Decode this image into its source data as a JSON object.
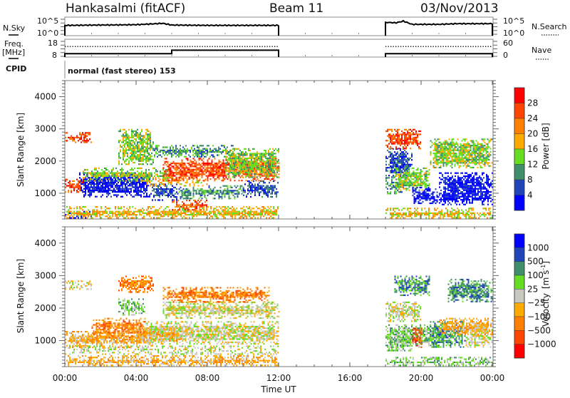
{
  "header": {
    "station": "Hankasalmi (fitACF)",
    "beam": "Beam 11",
    "date": "03/Nov/2013"
  },
  "colors": {
    "frame": "#7a7a7a",
    "trace": "#000000"
  },
  "chart_data": [
    {
      "type": "line",
      "name": "noise-panel",
      "left_label": "N.Sky",
      "right_label": "N.Search",
      "left_ticks": [
        "10^5",
        "10^0"
      ],
      "right_ticks": [
        "10^5",
        "10^0"
      ],
      "x_range_hours": [
        0,
        24
      ],
      "data_gap_hours": [
        12,
        18
      ],
      "series": [
        {
          "name": "N.Sky",
          "style": "solid",
          "level_fraction": [
            [
              0,
              0.6
            ],
            [
              2,
              0.62
            ],
            [
              4,
              0.64
            ],
            [
              5.5,
              0.72
            ],
            [
              6,
              0.62
            ],
            [
              8,
              0.6
            ],
            [
              10,
              0.6
            ],
            [
              12,
              0.6
            ],
            [
              18,
              0.78
            ],
            [
              18.6,
              0.75
            ],
            [
              19,
              0.85
            ],
            [
              19.5,
              0.66
            ],
            [
              21,
              0.66
            ],
            [
              22,
              0.7
            ],
            [
              24,
              0.7
            ]
          ]
        }
      ]
    },
    {
      "type": "line",
      "name": "freq-panel",
      "left_label": "Freq.",
      "left_unit": "[MHz]",
      "right_label": "Nave",
      "left_ticks": [
        "18",
        "8"
      ],
      "right_ticks": [
        "60",
        "0"
      ],
      "x_range_hours": [
        0,
        24
      ],
      "data_gap_hours": [
        12,
        18
      ],
      "series": [
        {
          "name": "Freq",
          "style": "solid",
          "values_mhz": [
            [
              0,
              10
            ],
            [
              6,
              10
            ],
            [
              6,
              12
            ],
            [
              12,
              12
            ],
            [
              18,
              10
            ],
            [
              24,
              10
            ]
          ]
        },
        {
          "name": "Nave",
          "style": "dotted",
          "values": [
            [
              0,
              37
            ],
            [
              12,
              37
            ],
            [
              18,
              37
            ],
            [
              24,
              37
            ]
          ]
        }
      ]
    },
    {
      "type": "table",
      "name": "cpid-row",
      "label": "CPID",
      "text": "normal (fast stereo) 153"
    },
    {
      "type": "heatmap",
      "name": "power-panel",
      "ylabel": "Slant Range [km]",
      "y_ticks": [
        "4000",
        "3000",
        "2000",
        "1000"
      ],
      "y_tick_values": [
        4000,
        3000,
        2000,
        1000
      ],
      "ylim": [
        200,
        4500
      ],
      "x_range_hours": [
        0,
        24
      ],
      "data_gap_hours": [
        12,
        18
      ],
      "colorbar": {
        "label": "Power [dB]",
        "ticks": [
          "28",
          "24",
          "20",
          "16",
          "12",
          "8",
          "4"
        ],
        "colors": [
          "#ff0000",
          "#ff4500",
          "#ff7f00",
          "#ffaa00",
          "#66dd22",
          "#3f8f6a",
          "#2244bb",
          "#0000ff"
        ]
      },
      "bands": [
        {
          "t0": 0.0,
          "t1": 1.0,
          "r0": 1050,
          "r1": 1450,
          "level": 1
        },
        {
          "t0": 0.0,
          "t1": 1.5,
          "r0": 2600,
          "r1": 2900,
          "level": 1
        },
        {
          "t0": 0.8,
          "t1": 4.8,
          "r0": 900,
          "r1": 1650,
          "level": 7
        },
        {
          "t0": 4.8,
          "t1": 6.3,
          "r0": 800,
          "r1": 1300,
          "level": 6
        },
        {
          "t0": 6.3,
          "t1": 10.0,
          "r0": 850,
          "r1": 1250,
          "level": 5
        },
        {
          "t0": 10.0,
          "t1": 12.0,
          "r0": 900,
          "r1": 1400,
          "level": 6
        },
        {
          "t0": 1.0,
          "t1": 6.0,
          "r0": 1400,
          "r1": 1800,
          "level": 4
        },
        {
          "t0": 3.0,
          "t1": 5.0,
          "r0": 1900,
          "r1": 3000,
          "level": 4
        },
        {
          "t0": 4.5,
          "t1": 8.0,
          "r0": 1250,
          "r1": 1500,
          "level": 3
        },
        {
          "t0": 5.5,
          "t1": 12.0,
          "r0": 1400,
          "r1": 2100,
          "level": 1
        },
        {
          "t0": 5.0,
          "t1": 9.5,
          "r0": 2150,
          "r1": 2500,
          "level": 5
        },
        {
          "t0": 9.0,
          "t1": 12.0,
          "r0": 1500,
          "r1": 2400,
          "level": 4
        },
        {
          "t0": 6.0,
          "t1": 8.0,
          "r0": 450,
          "r1": 800,
          "level": 1
        },
        {
          "t0": 0.0,
          "t1": 1.5,
          "r0": 250,
          "r1": 450,
          "level": 7
        },
        {
          "t0": 0.0,
          "t1": 12.0,
          "r0": 220,
          "r1": 600,
          "level": 3
        },
        {
          "t0": 18.0,
          "t1": 19.5,
          "r0": 1500,
          "r1": 2400,
          "level": 6
        },
        {
          "t0": 18.0,
          "t1": 19.0,
          "r0": 1000,
          "r1": 1500,
          "level": 5
        },
        {
          "t0": 18.5,
          "t1": 20.5,
          "r0": 1100,
          "r1": 1800,
          "level": 4
        },
        {
          "t0": 19.5,
          "t1": 21.0,
          "r0": 700,
          "r1": 1200,
          "level": 7
        },
        {
          "t0": 21.0,
          "t1": 24.0,
          "r0": 650,
          "r1": 1650,
          "level": 7
        },
        {
          "t0": 18.0,
          "t1": 20.0,
          "r0": 2400,
          "r1": 3000,
          "level": 1
        },
        {
          "t0": 20.5,
          "t1": 24.0,
          "r0": 1800,
          "r1": 2700,
          "level": 4
        },
        {
          "t0": 18.0,
          "t1": 24.0,
          "r0": 220,
          "r1": 550,
          "level": 3
        }
      ]
    },
    {
      "type": "heatmap",
      "name": "velocity-panel",
      "ylabel": "Slant Range [km]",
      "y_ticks": [
        "4000",
        "3000",
        "2000",
        "1000"
      ],
      "y_tick_values": [
        4000,
        3000,
        2000,
        1000
      ],
      "ylim": [
        200,
        4500
      ],
      "x_range_hours": [
        0,
        24
      ],
      "data_gap_hours": [
        12,
        18
      ],
      "xlabel": "Time UT",
      "x_ticks": [
        "00:00",
        "04:00",
        "08:00",
        "12:00",
        "16:00",
        "20:00",
        "00:00"
      ],
      "x_tick_hours": [
        0,
        4,
        8,
        12,
        16,
        20,
        24
      ],
      "colorbar": {
        "label": "Velocity",
        "unit": "[m s",
        "unit_sup": "-1",
        "unit_close": "]",
        "ticks": [
          "1000",
          "500",
          "100",
          "25",
          "−25",
          "−100",
          "−500",
          "−1000"
        ],
        "colors": [
          "#0000ff",
          "#2244bb",
          "#3f8f6a",
          "#66dd22",
          "#c8c8c0",
          "#ffaa00",
          "#ff7f00",
          "#ff4500",
          "#ff0000"
        ]
      },
      "bands": [
        {
          "t0": 0.0,
          "t1": 1.5,
          "r0": 2600,
          "r1": 2850,
          "level": 4
        },
        {
          "t0": 0.0,
          "t1": 5.0,
          "r0": 800,
          "r1": 1300,
          "level": 5
        },
        {
          "t0": 0.0,
          "t1": 12.0,
          "r0": 600,
          "r1": 850,
          "level": 4
        },
        {
          "t0": 1.5,
          "t1": 4.5,
          "r0": 1100,
          "r1": 1700,
          "level": 6
        },
        {
          "t0": 4.5,
          "t1": 12.0,
          "r0": 900,
          "r1": 1600,
          "level": 4
        },
        {
          "t0": 4.0,
          "t1": 6.5,
          "r0": 1000,
          "r1": 1400,
          "level": 5
        },
        {
          "t0": 3.0,
          "t1": 4.5,
          "r0": 1800,
          "r1": 2300,
          "level": 3
        },
        {
          "t0": 5.5,
          "t1": 12.0,
          "r0": 1700,
          "r1": 2200,
          "level": 4
        },
        {
          "t0": 5.5,
          "t1": 11.5,
          "r0": 2200,
          "r1": 2650,
          "level": 6
        },
        {
          "t0": 3.0,
          "t1": 5.0,
          "r0": 2500,
          "r1": 3000,
          "level": 6
        },
        {
          "t0": 0.0,
          "t1": 12.0,
          "r0": 220,
          "r1": 550,
          "level": 5
        },
        {
          "t0": 18.0,
          "t1": 20.0,
          "r0": 1600,
          "r1": 2200,
          "level": 4
        },
        {
          "t0": 18.0,
          "t1": 21.0,
          "r0": 800,
          "r1": 1500,
          "level": 3
        },
        {
          "t0": 18.0,
          "t1": 19.5,
          "r0": 700,
          "r1": 1200,
          "level": 3
        },
        {
          "t0": 19.5,
          "t1": 20.0,
          "r0": 800,
          "r1": 1400,
          "level": 7
        },
        {
          "t0": 20.5,
          "t1": 22.5,
          "r0": 800,
          "r1": 1600,
          "level": 2
        },
        {
          "t0": 22.5,
          "t1": 24.0,
          "r0": 800,
          "r1": 1600,
          "level": 4
        },
        {
          "t0": 21.0,
          "t1": 24.0,
          "r0": 1200,
          "r1": 1700,
          "level": 5
        },
        {
          "t0": 18.5,
          "t1": 20.5,
          "r0": 2400,
          "r1": 3000,
          "level": 2
        },
        {
          "t0": 21.5,
          "t1": 24.0,
          "r0": 2200,
          "r1": 2900,
          "level": 2
        },
        {
          "t0": 18.0,
          "t1": 24.0,
          "r0": 220,
          "r1": 500,
          "level": 3
        }
      ]
    }
  ]
}
